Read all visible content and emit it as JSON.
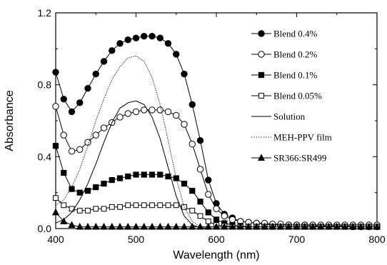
{
  "chart_data": {
    "type": "line",
    "xlabel": "Wavelength (nm)",
    "ylabel": "Absorbance",
    "xlim": [
      400,
      800
    ],
    "ylim": [
      0.0,
      1.2
    ],
    "x_ticks": [
      "400",
      "500",
      "600",
      "700",
      "800"
    ],
    "y_ticks": [
      "0.0",
      "0.4",
      "0.8",
      "1.2"
    ],
    "grid": false,
    "legend_position": "top-right",
    "series": [
      {
        "name": "Blend 0.4%",
        "line": "solid",
        "marker": "filled-circle",
        "x": [
          400,
          410,
          420,
          430,
          440,
          450,
          460,
          470,
          480,
          490,
          500,
          510,
          520,
          530,
          540,
          550,
          560,
          570,
          580,
          590,
          600,
          610,
          620,
          630,
          640,
          650,
          660,
          670,
          680,
          690,
          700,
          710,
          720,
          730,
          740,
          750,
          760,
          770,
          780,
          790,
          800
        ],
        "y": [
          0.87,
          0.72,
          0.65,
          0.7,
          0.78,
          0.86,
          0.93,
          0.99,
          1.03,
          1.05,
          1.06,
          1.07,
          1.07,
          1.06,
          1.03,
          0.97,
          0.86,
          0.69,
          0.49,
          0.27,
          0.14,
          0.08,
          0.06,
          0.04,
          0.035,
          0.03,
          0.025,
          0.02,
          0.02,
          0.02,
          0.02,
          0.02,
          0.015,
          0.015,
          0.015,
          0.015,
          0.015,
          0.01,
          0.01,
          0.01,
          0.01
        ]
      },
      {
        "name": "Blend 0.2%",
        "line": "solid",
        "marker": "open-circle",
        "x": [
          400,
          410,
          420,
          430,
          440,
          450,
          460,
          470,
          480,
          490,
          500,
          510,
          520,
          530,
          540,
          550,
          560,
          570,
          580,
          590,
          600,
          610,
          620,
          630,
          640,
          650,
          660,
          670,
          680,
          690,
          700,
          710,
          720,
          730,
          740,
          750,
          760,
          770,
          780,
          790,
          800
        ],
        "y": [
          0.68,
          0.52,
          0.43,
          0.44,
          0.48,
          0.52,
          0.56,
          0.59,
          0.62,
          0.64,
          0.65,
          0.66,
          0.66,
          0.66,
          0.65,
          0.63,
          0.58,
          0.47,
          0.33,
          0.19,
          0.11,
          0.07,
          0.05,
          0.04,
          0.035,
          0.03,
          0.03,
          0.025,
          0.025,
          0.02,
          0.02,
          0.02,
          0.02,
          0.02,
          0.02,
          0.02,
          0.02,
          0.02,
          0.02,
          0.02,
          0.02
        ]
      },
      {
        "name": "Blend 0.1%",
        "line": "solid",
        "marker": "filled-square",
        "x": [
          400,
          410,
          420,
          430,
          440,
          450,
          460,
          470,
          480,
          490,
          500,
          510,
          520,
          530,
          540,
          550,
          560,
          570,
          580,
          590,
          600,
          610,
          620,
          630,
          640,
          650,
          660,
          670,
          680,
          690,
          700,
          710,
          720,
          730,
          740,
          750,
          760,
          770,
          780,
          790,
          800
        ],
        "y": [
          0.46,
          0.31,
          0.22,
          0.2,
          0.21,
          0.23,
          0.25,
          0.27,
          0.28,
          0.29,
          0.3,
          0.3,
          0.3,
          0.3,
          0.29,
          0.28,
          0.25,
          0.21,
          0.15,
          0.09,
          0.05,
          0.03,
          0.02,
          0.015,
          0.01,
          0.01,
          0.01,
          0.01,
          0.01,
          0.01,
          0.01,
          0.01,
          0.01,
          0.01,
          0.01,
          0.01,
          0.01,
          0.01,
          0.01,
          0.01,
          0.01
        ]
      },
      {
        "name": "Blend 0.05%",
        "line": "solid",
        "marker": "open-square",
        "x": [
          400,
          410,
          420,
          430,
          440,
          450,
          460,
          470,
          480,
          490,
          500,
          510,
          520,
          530,
          540,
          550,
          560,
          570,
          580,
          590,
          600,
          610,
          620,
          630,
          640,
          650,
          660,
          670,
          680,
          690,
          700,
          710,
          720,
          730,
          740,
          750,
          760,
          770,
          780,
          790,
          800
        ],
        "y": [
          0.17,
          0.13,
          0.11,
          0.1,
          0.1,
          0.11,
          0.11,
          0.12,
          0.12,
          0.13,
          0.13,
          0.13,
          0.13,
          0.13,
          0.13,
          0.13,
          0.12,
          0.1,
          0.07,
          0.04,
          0.02,
          0.015,
          0.01,
          0.01,
          0.01,
          0.01,
          0.01,
          0.01,
          0.01,
          0.01,
          0.01,
          0.01,
          0.01,
          0.01,
          0.01,
          0.01,
          0.01,
          0.01,
          0.01,
          0.01,
          0.01
        ]
      },
      {
        "name": "Solution",
        "line": "solid",
        "marker": "none",
        "x": [
          400,
          410,
          420,
          430,
          440,
          450,
          460,
          470,
          480,
          490,
          500,
          510,
          520,
          530,
          540,
          550,
          560,
          570,
          580,
          590,
          600,
          610,
          620,
          640,
          660,
          680,
          700,
          720,
          740,
          760,
          780,
          800
        ],
        "y": [
          0.03,
          0.05,
          0.09,
          0.16,
          0.25,
          0.36,
          0.48,
          0.59,
          0.67,
          0.7,
          0.71,
          0.69,
          0.62,
          0.5,
          0.34,
          0.18,
          0.07,
          0.02,
          0.005,
          0.0,
          0.0,
          0.0,
          0.0,
          0.0,
          0.0,
          0.0,
          0.0,
          0.0,
          0.0,
          0.0,
          0.0,
          0.0
        ]
      },
      {
        "name": "MEH-PPV film",
        "line": "dotted",
        "marker": "none",
        "x": [
          400,
          410,
          420,
          430,
          440,
          450,
          460,
          470,
          480,
          490,
          500,
          510,
          520,
          530,
          540,
          550,
          560,
          570,
          580,
          590,
          600,
          610,
          620,
          640,
          660,
          680,
          700,
          720,
          740,
          760,
          780,
          800
        ],
        "y": [
          0.13,
          0.16,
          0.23,
          0.33,
          0.46,
          0.6,
          0.72,
          0.83,
          0.9,
          0.95,
          0.96,
          0.93,
          0.84,
          0.69,
          0.49,
          0.28,
          0.12,
          0.04,
          0.01,
          0.0,
          0.0,
          0.0,
          0.0,
          0.0,
          0.0,
          0.0,
          0.0,
          0.0,
          0.0,
          0.0,
          0.0,
          0.0
        ]
      },
      {
        "name": "SR366:SR499",
        "line": "solid",
        "marker": "filled-triangle",
        "x": [
          400,
          410,
          420,
          430,
          440,
          450,
          460,
          470,
          480,
          490,
          500,
          510,
          520,
          530,
          540,
          550,
          560,
          570,
          580,
          590,
          600,
          610,
          620,
          630,
          640,
          650,
          660,
          670,
          680,
          690,
          700,
          710,
          720,
          730,
          740,
          750,
          760,
          770,
          780,
          790,
          800
        ],
        "y": [
          0.09,
          0.04,
          0.02,
          0.01,
          0.01,
          0.01,
          0.01,
          0.01,
          0.01,
          0.01,
          0.01,
          0.01,
          0.01,
          0.01,
          0.01,
          0.01,
          0.01,
          0.01,
          0.01,
          0.01,
          0.01,
          0.01,
          0.01,
          0.01,
          0.01,
          0.01,
          0.01,
          0.01,
          0.01,
          0.01,
          0.01,
          0.01,
          0.01,
          0.01,
          0.01,
          0.01,
          0.01,
          0.01,
          0.01,
          0.01,
          0.01
        ]
      }
    ]
  }
}
